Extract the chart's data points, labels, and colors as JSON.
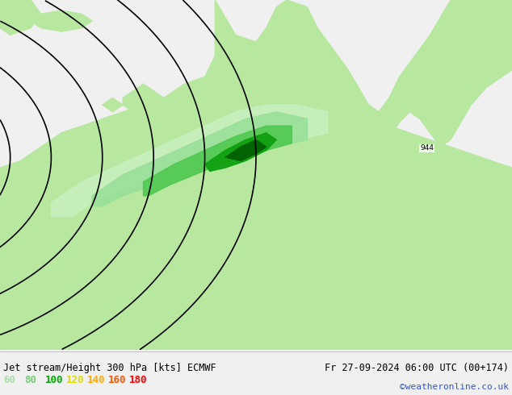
{
  "title_left": "Jet stream/Height 300 hPa [kts] ECMWF",
  "title_right": "Fr 27-09-2024 06:00 UTC (00+174)",
  "copyright": "©weatheronline.co.uk",
  "legend_values": [
    60,
    80,
    100,
    120,
    140,
    160,
    180
  ],
  "legend_colors": [
    "#aaddaa",
    "#77cc77",
    "#00aa00",
    "#dddd00",
    "#ffaa00",
    "#ff5500",
    "#ff0000"
  ],
  "bg_color": "#f0f0f0",
  "land_color": "#b8e8a0",
  "sea_color": "#d8d8d8",
  "contour_color": "#000000",
  "figsize": [
    6.34,
    4.9
  ],
  "dpi": 100,
  "jet_layers": [
    {
      "color": "#c8f0c0",
      "alpha": 0.85
    },
    {
      "color": "#90d890",
      "alpha": 0.9
    },
    {
      "color": "#40c040",
      "alpha": 0.92
    },
    {
      "color": "#008800",
      "alpha": 0.95
    }
  ]
}
